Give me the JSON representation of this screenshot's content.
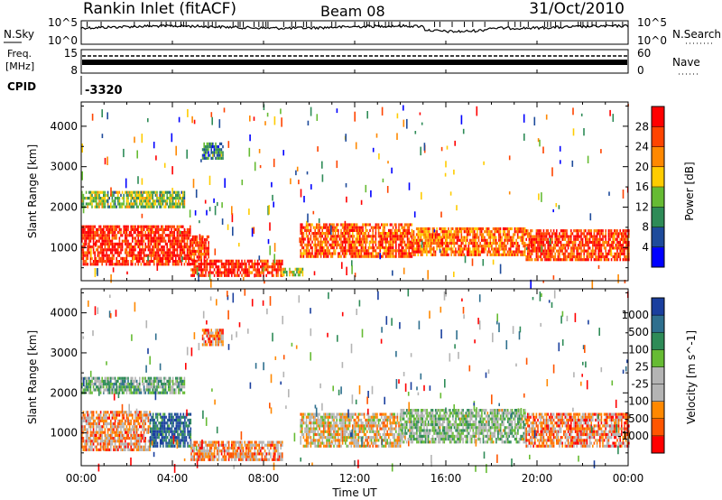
{
  "header": {
    "title": "Rankin Inlet (fitACF)",
    "beam": "Beam 08",
    "date": "31/Oct/2010"
  },
  "noise_panel": {
    "left_label": "N.Sky",
    "right_label": "N.Search",
    "left_ticks": [
      "10^5",
      "10^0"
    ],
    "right_ticks": [
      "10^5",
      "10^0"
    ]
  },
  "freq_panel": {
    "left_label_1": "Freq.",
    "left_label_2": "[MHz]",
    "left_ticks": [
      "15",
      "8"
    ],
    "right_label": "Nave",
    "right_ticks": [
      "60",
      "0"
    ]
  },
  "cpid": {
    "label": "CPID",
    "value": "-3320"
  },
  "x_axis": {
    "label": "Time UT",
    "ticks": [
      "00:00",
      "04:00",
      "08:00",
      "12:00",
      "16:00",
      "20:00",
      "00:00"
    ]
  },
  "colors": {
    "power": [
      "#0000ff",
      "#1e4b9b",
      "#2e8b57",
      "#66bb33",
      "#ffcc00",
      "#ff8800",
      "#ff4400",
      "#ff0000"
    ],
    "velocity": [
      "#1a3f9e",
      "#2e6f8e",
      "#2e8b57",
      "#66bb33",
      "#b4b4b4",
      "#b4b4b4",
      "#ff8800",
      "#ff5500",
      "#ff0000"
    ]
  },
  "chart_data": [
    {
      "type": "heatmap",
      "title": "Power",
      "xlabel": "",
      "ylabel": "Slant Range [km]",
      "xlim": [
        0,
        24
      ],
      "ylim": [
        180,
        4600
      ],
      "y_ticks": [
        "1000",
        "2000",
        "3000",
        "4000"
      ],
      "colorbar_label": "Power [dB]",
      "colorbar_ticks": [
        "4",
        "8",
        "12",
        "16",
        "20",
        "24",
        "28"
      ],
      "regions": [
        {
          "t": [
            0,
            4.8
          ],
          "r": [
            600,
            1550
          ],
          "level": 0.92
        },
        {
          "t": [
            4.8,
            5.6
          ],
          "r": [
            700,
            1300
          ],
          "level": 0.85
        },
        {
          "t": [
            4.8,
            8.8
          ],
          "r": [
            300,
            700
          ],
          "level": 0.9
        },
        {
          "t": [
            8.8,
            9.7
          ],
          "r": [
            300,
            500
          ],
          "level": 0.5
        },
        {
          "t": [
            9.6,
            14.5
          ],
          "r": [
            750,
            1600
          ],
          "level": 0.8
        },
        {
          "t": [
            14.5,
            19.5
          ],
          "r": [
            800,
            1500
          ],
          "level": 0.75
        },
        {
          "t": [
            19.5,
            24
          ],
          "r": [
            700,
            1450
          ],
          "level": 0.85
        },
        {
          "t": [
            0,
            4.5
          ],
          "r": [
            2000,
            2400
          ],
          "level": 0.45
        },
        {
          "t": [
            5.3,
            6.2
          ],
          "r": [
            3200,
            3600
          ],
          "level": 0.3
        }
      ]
    },
    {
      "type": "heatmap",
      "title": "Velocity",
      "xlabel": "Time UT",
      "ylabel": "Slant Range [km]",
      "xlim": [
        0,
        24
      ],
      "ylim": [
        180,
        4600
      ],
      "y_ticks": [
        "1000",
        "2000",
        "3000",
        "4000"
      ],
      "colorbar_label": "Velocity [m s^-1]",
      "colorbar_ticks": [
        "1000",
        "500",
        "100",
        "25",
        "-25",
        "-100",
        "-500",
        "-1000"
      ],
      "regions": [
        {
          "t": [
            0,
            3.0
          ],
          "r": [
            600,
            1550
          ],
          "level": 0.7
        },
        {
          "t": [
            3.0,
            4.8
          ],
          "r": [
            700,
            1500
          ],
          "level": 0.15
        },
        {
          "t": [
            4.8,
            8.8
          ],
          "r": [
            300,
            800
          ],
          "level": 0.7
        },
        {
          "t": [
            9.6,
            14.0
          ],
          "r": [
            700,
            1500
          ],
          "level": 0.6
        },
        {
          "t": [
            14.0,
            19.5
          ],
          "r": [
            800,
            1600
          ],
          "level": 0.45
        },
        {
          "t": [
            19.5,
            24
          ],
          "r": [
            700,
            1500
          ],
          "level": 0.75
        },
        {
          "t": [
            0,
            4.5
          ],
          "r": [
            2000,
            2400
          ],
          "level": 0.4
        },
        {
          "t": [
            5.3,
            6.2
          ],
          "r": [
            3200,
            3600
          ],
          "level": 0.75
        }
      ]
    }
  ]
}
